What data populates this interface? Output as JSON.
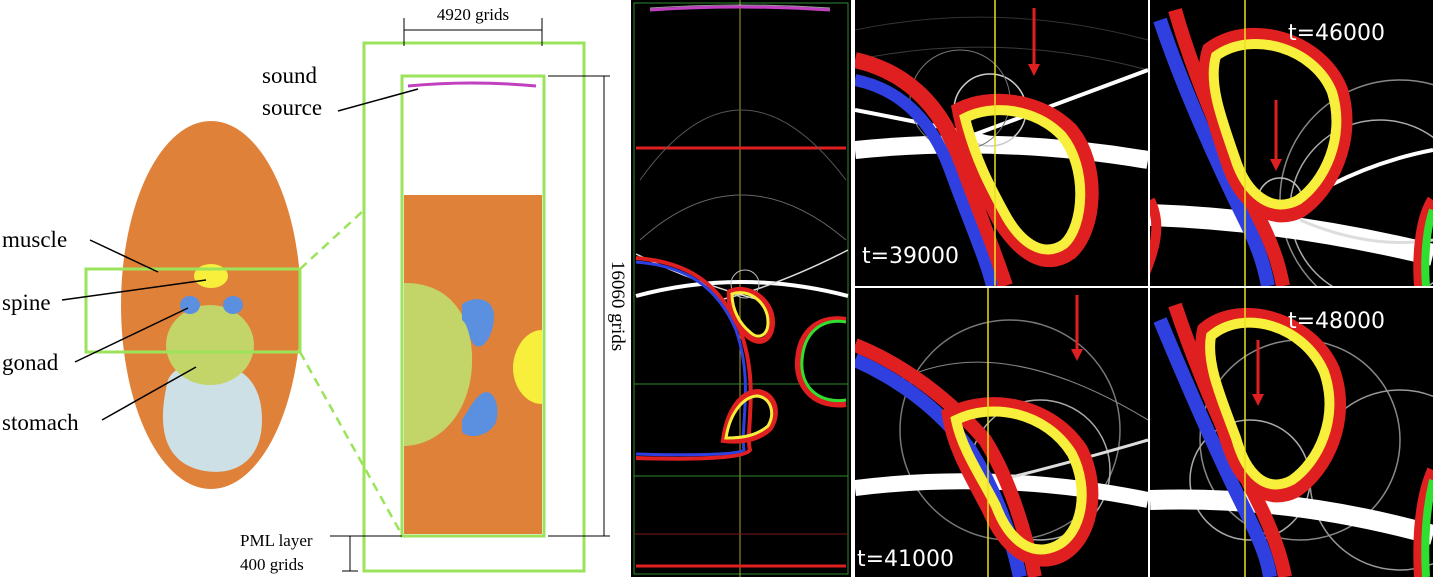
{
  "diagram": {
    "labels": {
      "sound_source_line1": "sound",
      "sound_source_line2": "source",
      "width": "4920 grids",
      "height": "16060 grids",
      "pml_line1": "PML layer",
      "pml_line2": "400 grids",
      "muscle": "muscle",
      "spine": "spine",
      "gonad": "gonad",
      "stomach": "stomach"
    },
    "colors": {
      "body": "#e0813a",
      "spine": "#f7ef3c",
      "gonad": "#c3d468",
      "stomach": "#cde0e5",
      "blue_organ": "#5b90e0",
      "frame": "#9be35a",
      "source": "#c040c0"
    }
  },
  "snapshots": [
    {
      "time": "t=39000"
    },
    {
      "time": "t=46000"
    },
    {
      "time": "t=41000"
    },
    {
      "time": "t=48000"
    }
  ]
}
